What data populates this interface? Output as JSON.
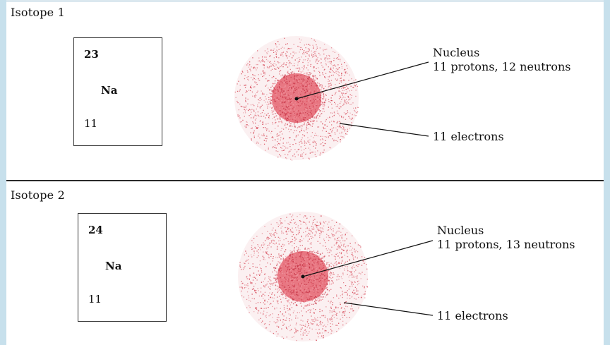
{
  "colors": {
    "side_bar": "#c7e0ec",
    "electron_cloud": "#d23a4a",
    "nucleus": "#e04858",
    "line": "#111111"
  },
  "isotopes": [
    {
      "title": "Isotope 1",
      "mass_number": "23",
      "symbol": "Na",
      "atomic_number": "11",
      "nucleus_label": "Nucleus",
      "composition_label": "11 protons, 12 neutrons",
      "electrons_label": "11 electrons"
    },
    {
      "title": "Isotope 2",
      "mass_number": "24",
      "symbol": "Na",
      "atomic_number": "11",
      "nucleus_label": "Nucleus",
      "composition_label": "11 protons, 13 neutrons",
      "electrons_label": "11 electrons"
    }
  ]
}
